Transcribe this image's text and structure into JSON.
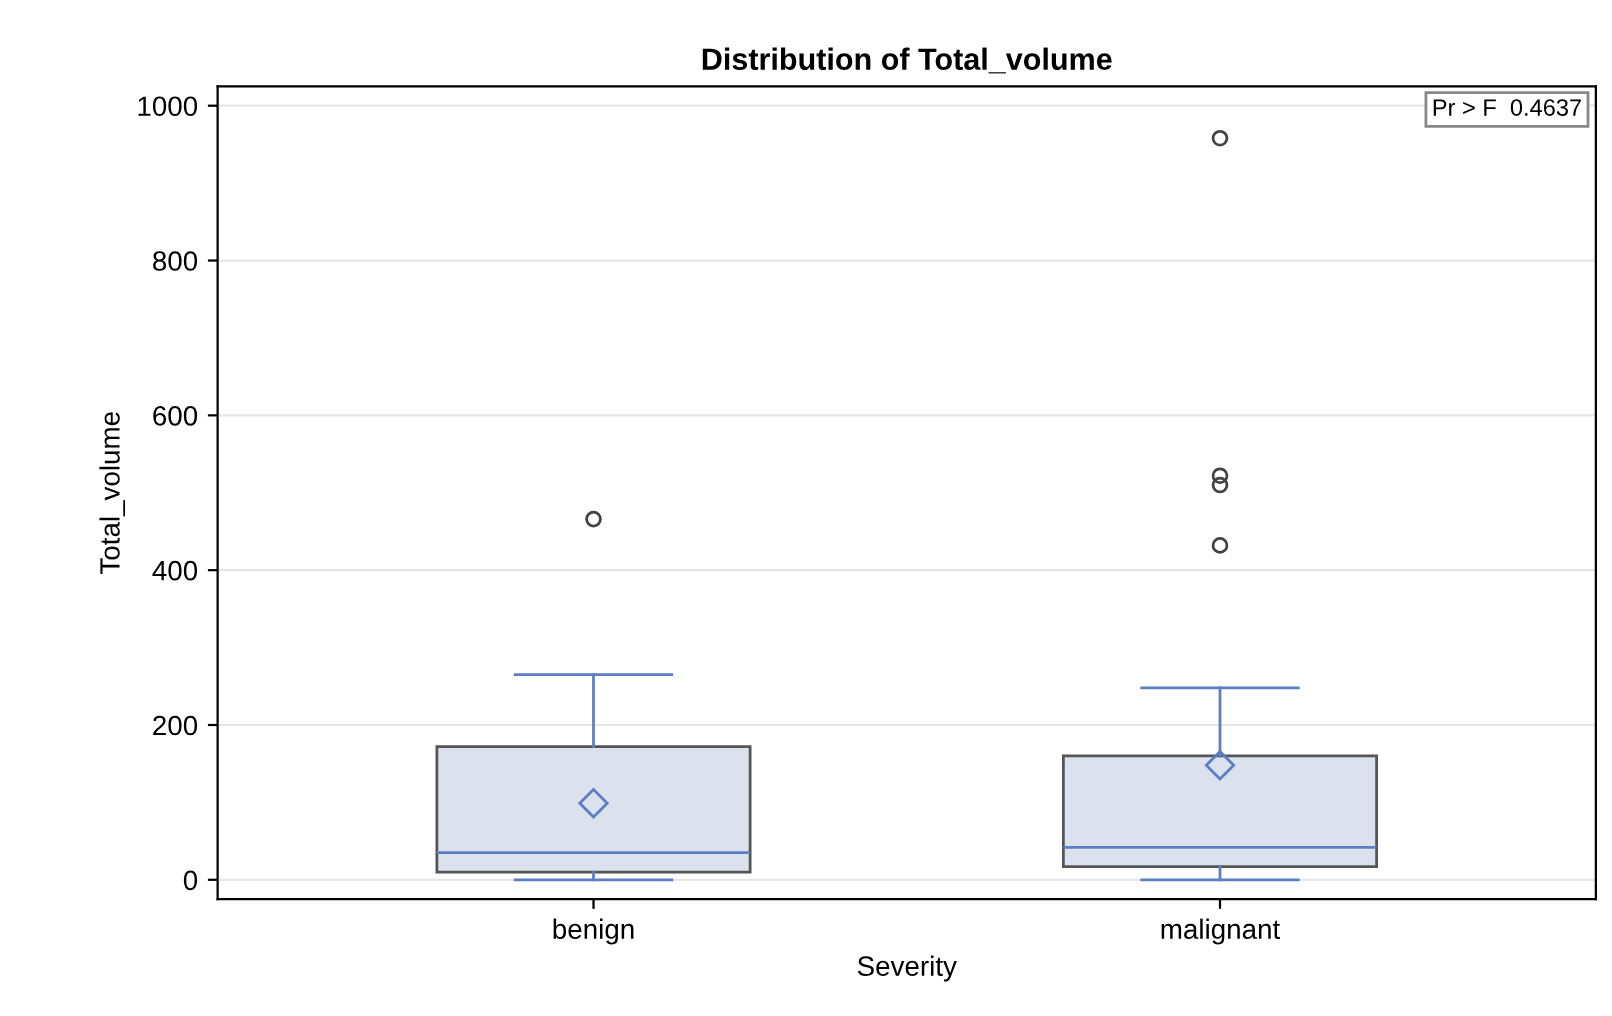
{
  "chart_data": {
    "type": "box",
    "title": "Distribution of Total_volume",
    "xlabel": "Severity",
    "ylabel": "Total_volume",
    "categories": [
      "benign",
      "malignant"
    ],
    "boxes": [
      {
        "low": 0,
        "q1": 10,
        "median": 35,
        "q3": 172,
        "high": 265,
        "mean": 99,
        "outliers": [
          466
        ]
      },
      {
        "low": 0,
        "q1": 17,
        "median": 42,
        "q3": 160,
        "high": 248,
        "mean": 148,
        "outliers": [
          958,
          522,
          510,
          432
        ]
      }
    ],
    "color": "#dbe2ee",
    "ylim": [
      -25,
      1025
    ],
    "yticks": [
      0,
      200,
      400,
      600,
      800,
      1000
    ],
    "grid": "y",
    "marker": "circle",
    "annotations": [
      "Pr > F  0.4637"
    ]
  }
}
